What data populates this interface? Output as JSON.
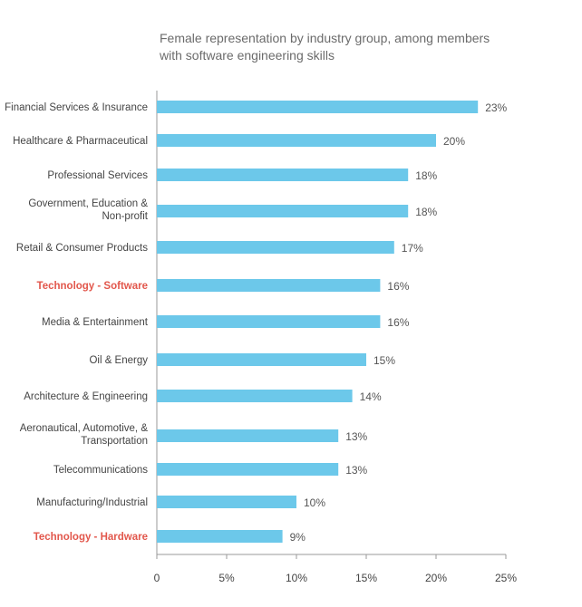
{
  "chart_data": {
    "type": "bar",
    "orientation": "horizontal",
    "title": "Female representation by industry group, among members with software engineering skills",
    "title_lines": [
      "Female representation by industry group, among members",
      "with software engineering skills"
    ],
    "categories": [
      [
        "Financial Services & Insurance"
      ],
      [
        "Healthcare & Pharmaceutical"
      ],
      [
        "Professional Services"
      ],
      [
        "Government, Education &",
        "Non-profit"
      ],
      [
        "Retail & Consumer Products"
      ],
      [
        "Technology - Software"
      ],
      [
        "Media & Entertainment"
      ],
      [
        "Oil & Energy"
      ],
      [
        "Architecture & Engineering"
      ],
      [
        "Aeronautical, Automotive, &",
        "Transportation"
      ],
      [
        "Telecommunications"
      ],
      [
        "Manufacturing/Industrial"
      ],
      [
        "Technology - Hardware"
      ]
    ],
    "values": [
      23,
      20,
      18,
      18,
      17,
      16,
      16,
      15,
      14,
      13,
      13,
      10,
      9
    ],
    "value_labels": [
      "23%",
      "20%",
      "18%",
      "18%",
      "17%",
      "16%",
      "16%",
      "15%",
      "14%",
      "13%",
      "13%",
      "10%",
      "9%"
    ],
    "highlighted": [
      false,
      false,
      false,
      false,
      false,
      true,
      false,
      false,
      false,
      false,
      false,
      false,
      true
    ],
    "xlim": [
      0,
      25
    ],
    "x_ticks": [
      0,
      5,
      10,
      15,
      20,
      25
    ],
    "x_tick_labels": [
      "0",
      "5%",
      "10%",
      "15%",
      "20%",
      "25%"
    ],
    "xlabel": "",
    "ylabel": "",
    "grid": false,
    "colors": {
      "bar": "#6cc8ea",
      "highlight_label": "#e2574c",
      "label": "#444444",
      "value_label": "#555555",
      "axis": "#999999",
      "title": "#6b6b6b"
    }
  }
}
